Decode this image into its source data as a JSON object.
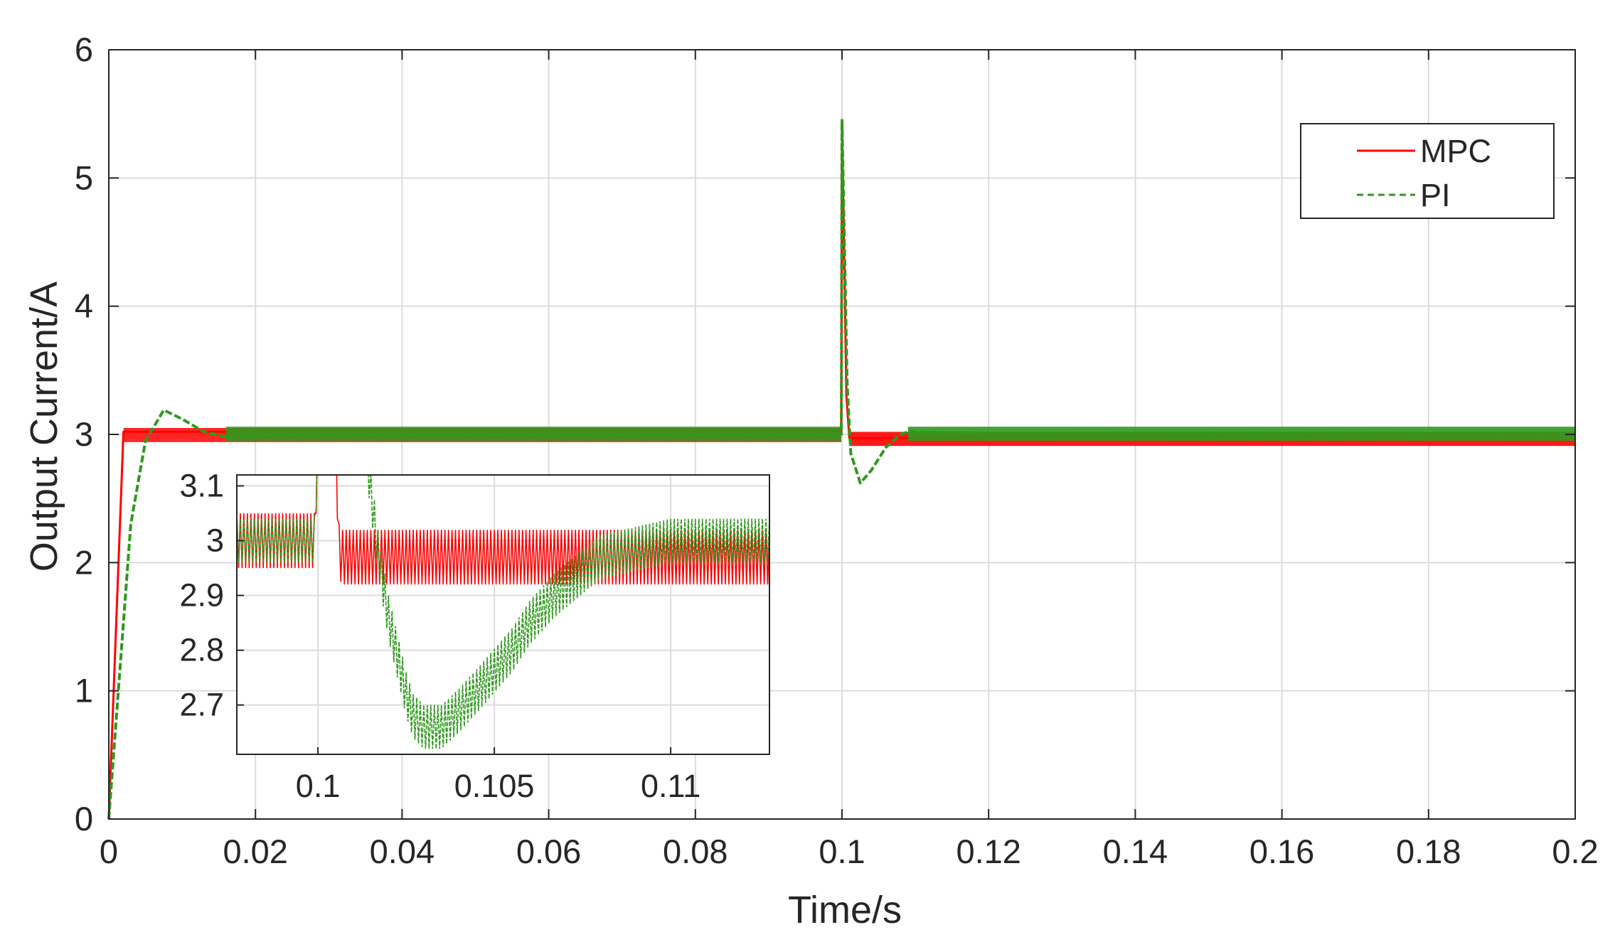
{
  "chart_data": {
    "type": "line",
    "main": {
      "xlabel": "Time/s",
      "ylabel": "Output Current/A",
      "xlim": [
        0,
        0.2
      ],
      "ylim": [
        0,
        6
      ],
      "x_ticks": [
        0,
        0.02,
        0.04,
        0.06,
        0.08,
        0.1,
        0.12,
        0.14,
        0.16,
        0.18,
        0.2
      ],
      "x_tick_labels": [
        "0",
        "0.02",
        "0.04",
        "0.06",
        "0.08",
        "0.1",
        "0.12",
        "0.14",
        "0.16",
        "0.18",
        "0.2"
      ],
      "y_ticks": [
        0,
        1,
        2,
        3,
        4,
        5,
        6
      ],
      "y_tick_labels": [
        "0",
        "1",
        "2",
        "3",
        "4",
        "5",
        "6"
      ],
      "grid": true,
      "legend_position": "top-right",
      "series": [
        {
          "name": "MPC",
          "color": "#ff0000",
          "style": "solid",
          "x": [
            0,
            0.002,
            0.01,
            0.05,
            0.0999,
            0.1,
            0.1006,
            0.101,
            0.104,
            0.108,
            0.13,
            0.2
          ],
          "y": [
            0,
            3.02,
            3.02,
            3.02,
            3.02,
            5.4,
            3.3,
            2.97,
            2.97,
            2.97,
            2.99,
            3.0
          ],
          "ripple_band": [
            2.94,
            3.05
          ]
        },
        {
          "name": "PI",
          "color": "#2e9a1c",
          "style": "dashed",
          "x": [
            0,
            0.003,
            0.005,
            0.0075,
            0.01,
            0.013,
            0.016,
            0.02,
            0.05,
            0.0999,
            0.1,
            0.1007,
            0.1012,
            0.1025,
            0.104,
            0.106,
            0.108,
            0.109,
            0.12,
            0.2
          ],
          "y": [
            0,
            2.3,
            2.95,
            3.19,
            3.12,
            3.02,
            2.98,
            3.0,
            3.0,
            3.0,
            5.45,
            3.4,
            2.85,
            2.62,
            2.72,
            2.9,
            3.0,
            3.02,
            3.01,
            3.0
          ],
          "ripple_band": [
            2.95,
            3.06
          ]
        }
      ]
    },
    "inset": {
      "xlim": [
        0.0977,
        0.1128
      ],
      "ylim": [
        2.61,
        3.12
      ],
      "x_ticks": [
        0.1,
        0.105,
        0.11
      ],
      "x_tick_labels": [
        "0.1",
        "0.105",
        "0.11"
      ],
      "y_ticks": [
        2.7,
        2.8,
        2.9,
        3.0,
        3.1
      ],
      "y_tick_labels": [
        "2.7",
        "2.8",
        "2.9",
        "3",
        "3.1"
      ],
      "grid": true,
      "series": [
        {
          "name": "MPC",
          "color": "#ff0000",
          "x": [
            0.0977,
            0.0999,
            0.1,
            0.1005,
            0.1006,
            0.1007,
            0.1128
          ],
          "y_center": [
            3.0,
            3.0,
            3.2,
            3.2,
            2.98,
            2.97,
            2.97
          ],
          "ripple_amplitude": 0.05
        },
        {
          "name": "PI",
          "color": "#2e9a1c",
          "x": [
            0.0977,
            0.0999,
            0.1,
            0.1013,
            0.1017,
            0.102,
            0.1025,
            0.1027,
            0.103,
            0.1035,
            0.104,
            0.1047,
            0.1055,
            0.106,
            0.1067,
            0.108,
            0.11,
            0.1128
          ],
          "y_center": [
            3.0,
            3.0,
            3.2,
            3.2,
            2.98,
            2.86,
            2.72,
            2.68,
            2.66,
            2.66,
            2.69,
            2.74,
            2.8,
            2.85,
            2.9,
            2.97,
            3.0,
            3.0
          ],
          "ripple_amplitude": 0.04
        }
      ]
    }
  }
}
